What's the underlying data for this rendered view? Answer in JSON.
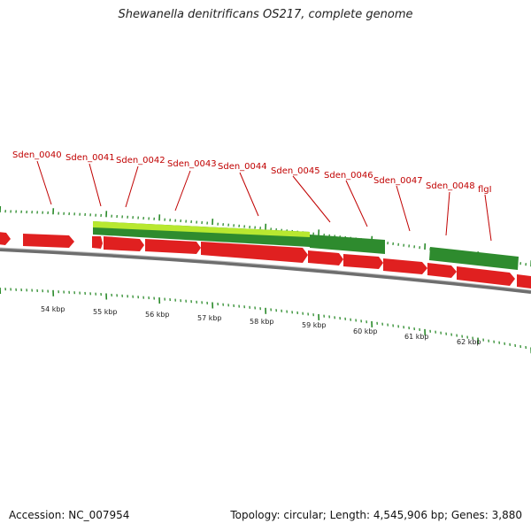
{
  "title": "Shewanella denitrificans OS217, complete genome",
  "footer": {
    "accession": "Accession: NC_007954",
    "stats": "Topology: circular; Length: 4,545,906 bp; Genes: 3,880"
  },
  "colors": {
    "forward_gene": "#e02020",
    "cds_dark": "#2e8b2e",
    "cds_light": "#b8e830",
    "backbone": "#777777",
    "tick": "#2a8a2a",
    "label": "#c00000"
  },
  "kbp_labels": [
    "54 kbp",
    "55 kbp",
    "56 kbp",
    "57 kbp",
    "58 kbp",
    "59 kbp",
    "60 kbp",
    "61 kbp",
    "62 kbp"
  ],
  "gene_labels": [
    "Sden_0040",
    "Sden_0041",
    "Sden_0042",
    "Sden_0043",
    "Sden_0044",
    "Sden_0045",
    "Sden_0046",
    "Sden_0047",
    "Sden_0048",
    "flgI"
  ]
}
